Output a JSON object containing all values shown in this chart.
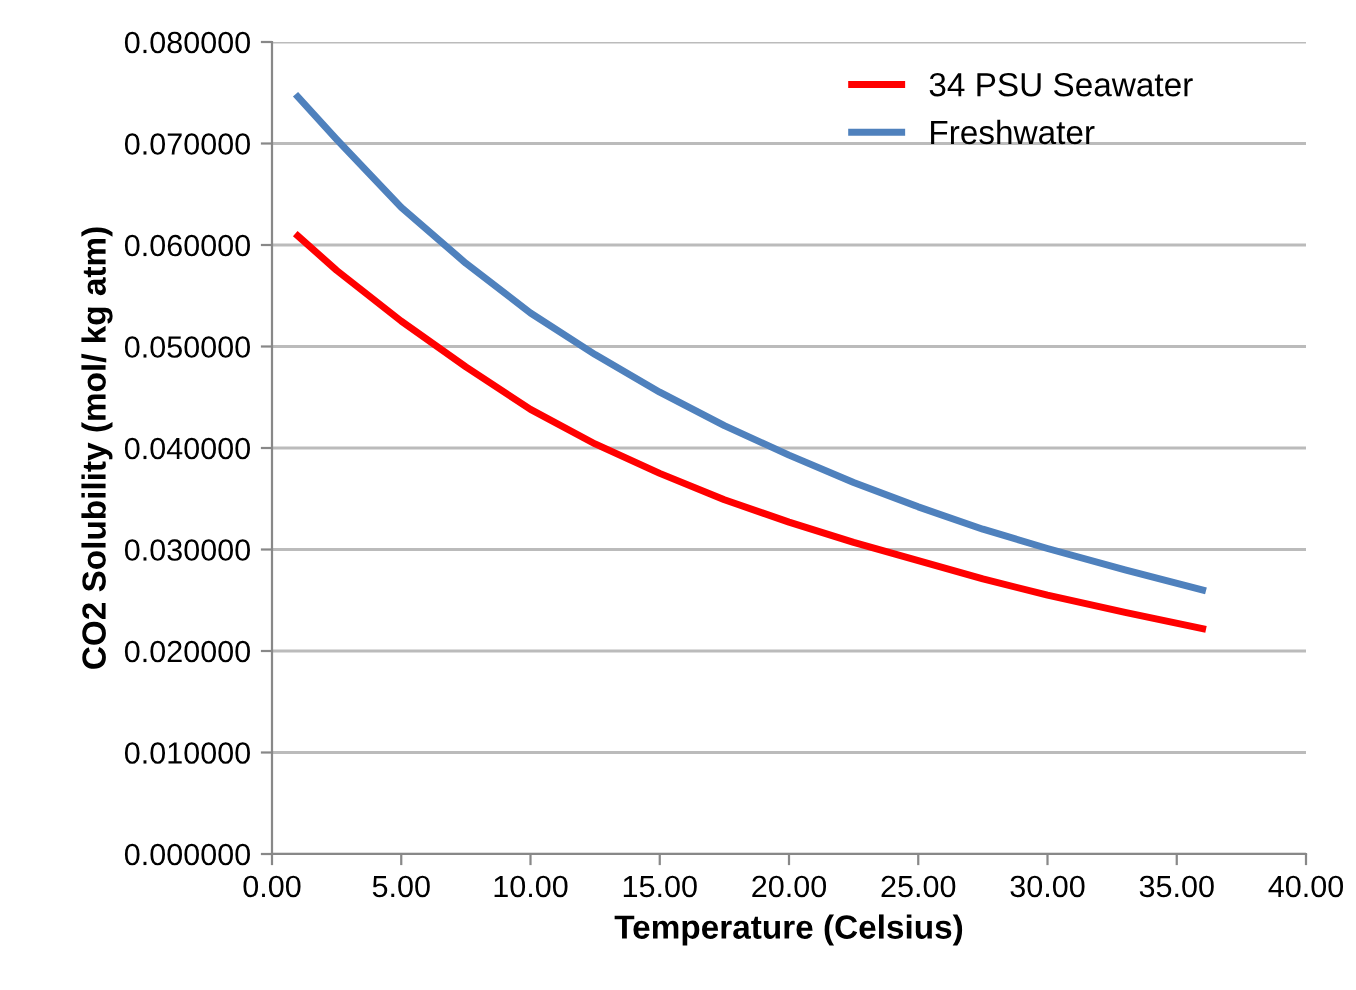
{
  "chart_data": {
    "type": "line",
    "xlabel": "Temperature (Celsius)",
    "ylabel": "CO2 Solubility (mol/ kg atm)",
    "x": [
      1,
      2.5,
      5,
      7.5,
      10,
      12.5,
      15,
      17.5,
      20,
      22.5,
      25,
      27.5,
      30,
      33,
      36
    ],
    "series": [
      {
        "name": "34 PSU Seawater",
        "color": "#ff0000",
        "values": [
          0.0609,
          0.0575,
          0.0525,
          0.048,
          0.0438,
          0.0404,
          0.0375,
          0.0349,
          0.0327,
          0.0307,
          0.0289,
          0.0271,
          0.0255,
          0.0238,
          0.0222
        ]
      },
      {
        "name": "Freshwater",
        "color": "#4f81bd",
        "values": [
          0.0746,
          0.0704,
          0.0637,
          0.0582,
          0.0533,
          0.0492,
          0.0455,
          0.0422,
          0.0393,
          0.0366,
          0.0342,
          0.032,
          0.0301,
          0.028,
          0.026
        ]
      }
    ],
    "xlim": [
      0,
      40
    ],
    "xticks": [
      {
        "value": 0,
        "label": "0.00"
      },
      {
        "value": 5,
        "label": "5.00"
      },
      {
        "value": 10,
        "label": "10.00"
      },
      {
        "value": 15,
        "label": "15.00"
      },
      {
        "value": 20,
        "label": "20.00"
      },
      {
        "value": 25,
        "label": "25.00"
      },
      {
        "value": 30,
        "label": "30.00"
      },
      {
        "value": 35,
        "label": "35.00"
      },
      {
        "value": 40,
        "label": "40.00"
      }
    ],
    "ylim": [
      0,
      0.08
    ],
    "yticks": [
      {
        "value": 0,
        "label": "0.000000"
      },
      {
        "value": 0.01,
        "label": "0.010000"
      },
      {
        "value": 0.02,
        "label": "0.020000"
      },
      {
        "value": 0.03,
        "label": "0.030000"
      },
      {
        "value": 0.04,
        "label": "0.040000"
      },
      {
        "value": 0.05,
        "label": "0.050000"
      },
      {
        "value": 0.06,
        "label": "0.060000"
      },
      {
        "value": 0.07,
        "label": "0.070000"
      },
      {
        "value": 0.08,
        "label": "0.080000"
      }
    ],
    "grid": "y",
    "legend": "top right",
    "marker": "none",
    "line_style": "solid"
  }
}
